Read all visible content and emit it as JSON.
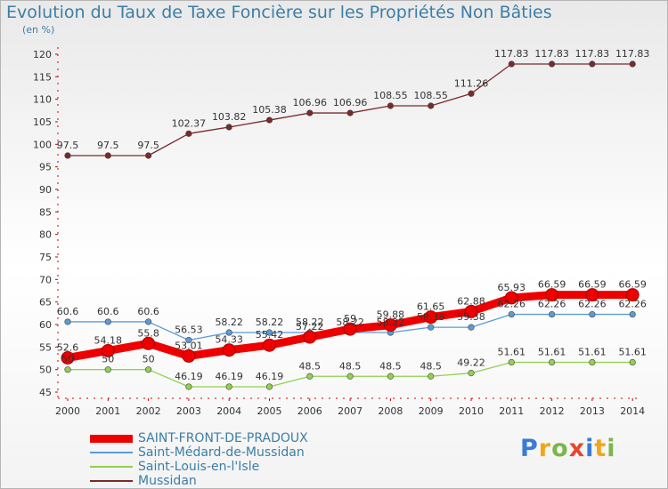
{
  "header": {
    "title": "Evolution du Taux de Taxe Foncière sur les Propriétés Non Bâties",
    "unit": "(en %)"
  },
  "logo": {
    "text": "Proxiti",
    "colors": [
      "#3a7bd5",
      "#f2a51a",
      "#7ab648",
      "#e8452c",
      "#3a7bd5",
      "#f2a51a",
      "#7ab648"
    ]
  },
  "chart_data": {
    "type": "line",
    "categories": [
      "2000",
      "2001",
      "2002",
      "2003",
      "2004",
      "2005",
      "2006",
      "2007",
      "2008",
      "2009",
      "2010",
      "2011",
      "2012",
      "2013",
      "2014"
    ],
    "ylim": [
      45,
      120
    ],
    "ytick_step": 5,
    "grid": false,
    "legend_position": "bottom-left",
    "series": [
      {
        "name": "SAINT-FRONT-DE-PRADOUX",
        "color": "#ee0000",
        "emphasis": true,
        "values": [
          52.6,
          54.18,
          55.8,
          53.01,
          54.33,
          55.42,
          57.22,
          59,
          59.88,
          61.65,
          62.88,
          65.93,
          66.59,
          66.59,
          66.59
        ],
        "labels": [
          "52.6",
          "54.18",
          "55.8",
          "53.01",
          "54.33",
          "55.42",
          "57.22",
          "59",
          "59.88",
          "61.65",
          "62.88",
          "65.93",
          "66.59",
          "66.59",
          "66.59"
        ]
      },
      {
        "name": "Saint-Médard-de-Mussidan",
        "color": "#5b9bd5",
        "emphasis": false,
        "values": [
          60.6,
          60.6,
          60.6,
          56.53,
          58.22,
          58.22,
          58.22,
          58.22,
          58.22,
          59.38,
          59.38,
          62.26,
          62.26,
          62.26,
          62.26
        ],
        "labels": [
          "60.6",
          "60.6",
          "60.6",
          "56.53",
          "58.22",
          "58.22",
          "58.22",
          "58.22",
          "58.22",
          "59.38",
          "59.38",
          "62.26",
          "62.26",
          "62.26",
          "62.26"
        ]
      },
      {
        "name": "Saint-Louis-en-l'Isle",
        "color": "#92d050",
        "emphasis": false,
        "values": [
          50,
          50,
          50,
          46.19,
          46.19,
          46.19,
          48.5,
          48.5,
          48.5,
          48.5,
          49.22,
          51.61,
          51.61,
          51.61,
          51.61
        ],
        "labels": [
          "50",
          "50",
          "50",
          "46.19",
          "46.19",
          "46.19",
          "48.5",
          "48.5",
          "48.5",
          "48.5",
          "49.22",
          "51.61",
          "51.61",
          "51.61",
          "51.61"
        ]
      },
      {
        "name": "Mussidan",
        "color": "#7b2a2a",
        "emphasis": false,
        "values": [
          97.5,
          97.5,
          97.5,
          102.37,
          103.82,
          105.38,
          106.96,
          106.96,
          108.55,
          108.55,
          111.26,
          117.83,
          117.83,
          117.83,
          117.83
        ],
        "labels": [
          "97.5",
          "97.5",
          "97.5",
          "102.37",
          "103.82",
          "105.38",
          "106.96",
          "106.96",
          "108.55",
          "108.55",
          "111.26",
          "117.83",
          "117.83",
          "117.83",
          "117.83"
        ]
      }
    ]
  }
}
